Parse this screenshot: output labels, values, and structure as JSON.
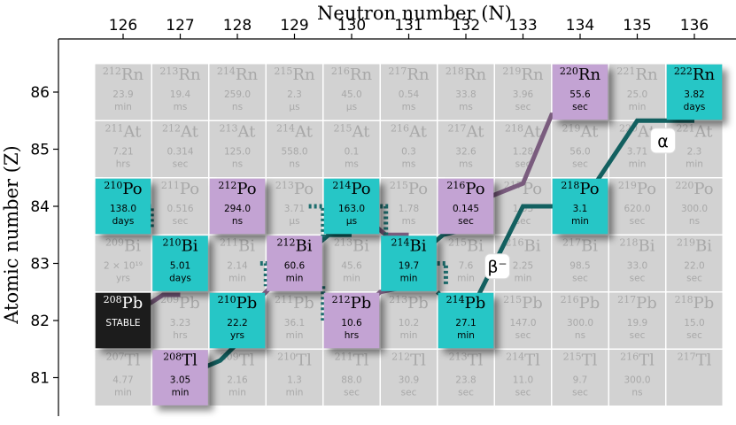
{
  "chart_data": {
    "type": "table",
    "xlabel": "Neutron number (N)",
    "ylabel": "Atomic number (Z)",
    "x_ticks": [
      "126",
      "127",
      "128",
      "129",
      "130",
      "131",
      "132",
      "133",
      "134",
      "135",
      "136"
    ],
    "y_ticks": [
      "86",
      "85",
      "84",
      "83",
      "82",
      "81"
    ],
    "colors": {
      "grid": "#d2d2d2",
      "alpha": "#26c6c6",
      "beta": "#c3a3d3",
      "stable": "#1a1a1a",
      "alpha_path": "#136060",
      "beta_path": "#7a5c7e",
      "grey_text": "#a8a8a8"
    },
    "nuclides": [
      {
        "A": "212",
        "el": "Rn",
        "N": 126,
        "Z": 86,
        "hl": "23.9",
        "unit": "min",
        "role": "grey"
      },
      {
        "A": "213",
        "el": "Rn",
        "N": 127,
        "Z": 86,
        "hl": "19.4",
        "unit": "ms",
        "role": "grey"
      },
      {
        "A": "214",
        "el": "Rn",
        "N": 128,
        "Z": 86,
        "hl": "259.0",
        "unit": "ns",
        "role": "grey"
      },
      {
        "A": "215",
        "el": "Rn",
        "N": 129,
        "Z": 86,
        "hl": "2.3",
        "unit": "µs",
        "role": "grey"
      },
      {
        "A": "216",
        "el": "Rn",
        "N": 130,
        "Z": 86,
        "hl": "45.0",
        "unit": "µs",
        "role": "grey"
      },
      {
        "A": "217",
        "el": "Rn",
        "N": 131,
        "Z": 86,
        "hl": "0.54",
        "unit": "ms",
        "role": "grey"
      },
      {
        "A": "218",
        "el": "Rn",
        "N": 132,
        "Z": 86,
        "hl": "33.8",
        "unit": "ms",
        "role": "grey"
      },
      {
        "A": "219",
        "el": "Rn",
        "N": 133,
        "Z": 86,
        "hl": "3.96",
        "unit": "sec",
        "role": "grey"
      },
      {
        "A": "220",
        "el": "Rn",
        "N": 134,
        "Z": 86,
        "hl": "55.6",
        "unit": "sec",
        "role": "beta"
      },
      {
        "A": "221",
        "el": "Rn",
        "N": 135,
        "Z": 86,
        "hl": "25.0",
        "unit": "min",
        "role": "grey"
      },
      {
        "A": "222",
        "el": "Rn",
        "N": 136,
        "Z": 86,
        "hl": "3.82",
        "unit": "days",
        "role": "alpha"
      },
      {
        "A": "211",
        "el": "At",
        "N": 126,
        "Z": 85,
        "hl": "7.21",
        "unit": "hrs",
        "role": "grey"
      },
      {
        "A": "212",
        "el": "At",
        "N": 127,
        "Z": 85,
        "hl": "0.314",
        "unit": "sec",
        "role": "grey"
      },
      {
        "A": "213",
        "el": "At",
        "N": 128,
        "Z": 85,
        "hl": "125.0",
        "unit": "ns",
        "role": "grey"
      },
      {
        "A": "214",
        "el": "At",
        "N": 129,
        "Z": 85,
        "hl": "558.0",
        "unit": "ns",
        "role": "grey"
      },
      {
        "A": "215",
        "el": "At",
        "N": 130,
        "Z": 85,
        "hl": "0.1",
        "unit": "ms",
        "role": "grey"
      },
      {
        "A": "216",
        "el": "At",
        "N": 131,
        "Z": 85,
        "hl": "0.3",
        "unit": "ms",
        "role": "grey"
      },
      {
        "A": "217",
        "el": "At",
        "N": 132,
        "Z": 85,
        "hl": "32.6",
        "unit": "ms",
        "role": "grey"
      },
      {
        "A": "218",
        "el": "At",
        "N": 133,
        "Z": 85,
        "hl": "1.28",
        "unit": "sec",
        "role": "grey"
      },
      {
        "A": "219",
        "el": "At",
        "N": 134,
        "Z": 85,
        "hl": "56.0",
        "unit": "sec",
        "role": "grey"
      },
      {
        "A": "220",
        "el": "At",
        "N": 135,
        "Z": 85,
        "hl": "3.71",
        "unit": "min",
        "role": "grey"
      },
      {
        "A": "221",
        "el": "At",
        "N": 136,
        "Z": 85,
        "hl": "2.3",
        "unit": "min",
        "role": "grey"
      },
      {
        "A": "210",
        "el": "Po",
        "N": 126,
        "Z": 84,
        "hl": "138.0",
        "unit": "days",
        "role": "alpha"
      },
      {
        "A": "211",
        "el": "Po",
        "N": 127,
        "Z": 84,
        "hl": "0.516",
        "unit": "sec",
        "role": "grey"
      },
      {
        "A": "212",
        "el": "Po",
        "N": 128,
        "Z": 84,
        "hl": "294.0",
        "unit": "ns",
        "role": "beta"
      },
      {
        "A": "213",
        "el": "Po",
        "N": 129,
        "Z": 84,
        "hl": "3.71",
        "unit": "µs",
        "role": "grey"
      },
      {
        "A": "214",
        "el": "Po",
        "N": 130,
        "Z": 84,
        "hl": "163.0",
        "unit": "µs",
        "role": "alpha"
      },
      {
        "A": "215",
        "el": "Po",
        "N": 131,
        "Z": 84,
        "hl": "1.78",
        "unit": "ms",
        "role": "grey"
      },
      {
        "A": "216",
        "el": "Po",
        "N": 132,
        "Z": 84,
        "hl": "0.145",
        "unit": "sec",
        "role": "beta"
      },
      {
        "A": "217",
        "el": "Po",
        "N": 133,
        "Z": 84,
        "hl": "1.53",
        "unit": "sec",
        "role": "grey"
      },
      {
        "A": "218",
        "el": "Po",
        "N": 134,
        "Z": 84,
        "hl": "3.1",
        "unit": "min",
        "role": "alpha"
      },
      {
        "A": "219",
        "el": "Po",
        "N": 135,
        "Z": 84,
        "hl": "620.0",
        "unit": "sec",
        "role": "grey"
      },
      {
        "A": "220",
        "el": "Po",
        "N": 136,
        "Z": 84,
        "hl": "300.0",
        "unit": "ns",
        "role": "grey"
      },
      {
        "A": "209",
        "el": "Bi",
        "N": 126,
        "Z": 83,
        "hl": "2 × 10¹⁹",
        "unit": "yrs",
        "role": "grey"
      },
      {
        "A": "210",
        "el": "Bi",
        "N": 127,
        "Z": 83,
        "hl": "5.01",
        "unit": "days",
        "role": "alpha"
      },
      {
        "A": "211",
        "el": "Bi",
        "N": 128,
        "Z": 83,
        "hl": "2.14",
        "unit": "min",
        "role": "grey"
      },
      {
        "A": "212",
        "el": "Bi",
        "N": 129,
        "Z": 83,
        "hl": "60.6",
        "unit": "min",
        "role": "beta"
      },
      {
        "A": "213",
        "el": "Bi",
        "N": 130,
        "Z": 83,
        "hl": "45.6",
        "unit": "min",
        "role": "grey"
      },
      {
        "A": "214",
        "el": "Bi",
        "N": 131,
        "Z": 83,
        "hl": "19.7",
        "unit": "min",
        "role": "alpha"
      },
      {
        "A": "215",
        "el": "Bi",
        "N": 132,
        "Z": 83,
        "hl": "7.6",
        "unit": "min",
        "role": "grey"
      },
      {
        "A": "216",
        "el": "Bi",
        "N": 133,
        "Z": 83,
        "hl": "2.25",
        "unit": "min",
        "role": "grey"
      },
      {
        "A": "217",
        "el": "Bi",
        "N": 134,
        "Z": 83,
        "hl": "98.5",
        "unit": "sec",
        "role": "grey"
      },
      {
        "A": "218",
        "el": "Bi",
        "N": 135,
        "Z": 83,
        "hl": "33.0",
        "unit": "sec",
        "role": "grey"
      },
      {
        "A": "219",
        "el": "Bi",
        "N": 136,
        "Z": 83,
        "hl": "22.0",
        "unit": "sec",
        "role": "grey"
      },
      {
        "A": "208",
        "el": "Pb",
        "N": 126,
        "Z": 82,
        "hl": "STABLE",
        "unit": "",
        "role": "stable"
      },
      {
        "A": "209",
        "el": "Pb",
        "N": 127,
        "Z": 82,
        "hl": "3.23",
        "unit": "hrs",
        "role": "grey"
      },
      {
        "A": "210",
        "el": "Pb",
        "N": 128,
        "Z": 82,
        "hl": "22.2",
        "unit": "yrs",
        "role": "alpha"
      },
      {
        "A": "211",
        "el": "Pb",
        "N": 129,
        "Z": 82,
        "hl": "36.1",
        "unit": "min",
        "role": "grey"
      },
      {
        "A": "212",
        "el": "Pb",
        "N": 130,
        "Z": 82,
        "hl": "10.6",
        "unit": "hrs",
        "role": "beta"
      },
      {
        "A": "213",
        "el": "Pb",
        "N": 131,
        "Z": 82,
        "hl": "10.2",
        "unit": "min",
        "role": "grey"
      },
      {
        "A": "214",
        "el": "Pb",
        "N": 132,
        "Z": 82,
        "hl": "27.1",
        "unit": "min",
        "role": "alpha"
      },
      {
        "A": "215",
        "el": "Pb",
        "N": 133,
        "Z": 82,
        "hl": "147.0",
        "unit": "sec",
        "role": "grey"
      },
      {
        "A": "216",
        "el": "Pb",
        "N": 134,
        "Z": 82,
        "hl": "300.0",
        "unit": "ns",
        "role": "grey"
      },
      {
        "A": "217",
        "el": "Pb",
        "N": 135,
        "Z": 82,
        "hl": "19.9",
        "unit": "sec",
        "role": "grey"
      },
      {
        "A": "218",
        "el": "Pb",
        "N": 136,
        "Z": 82,
        "hl": "15.0",
        "unit": "sec",
        "role": "grey"
      },
      {
        "A": "207",
        "el": "Tl",
        "N": 126,
        "Z": 81,
        "hl": "4.77",
        "unit": "min",
        "role": "grey"
      },
      {
        "A": "208",
        "el": "Tl",
        "N": 127,
        "Z": 81,
        "hl": "3.05",
        "unit": "min",
        "role": "beta"
      },
      {
        "A": "209",
        "el": "Tl",
        "N": 128,
        "Z": 81,
        "hl": "2.16",
        "unit": "min",
        "role": "grey"
      },
      {
        "A": "210",
        "el": "Tl",
        "N": 129,
        "Z": 81,
        "hl": "1.3",
        "unit": "min",
        "role": "grey"
      },
      {
        "A": "211",
        "el": "Tl",
        "N": 130,
        "Z": 81,
        "hl": "88.0",
        "unit": "sec",
        "role": "grey"
      },
      {
        "A": "212",
        "el": "Tl",
        "N": 131,
        "Z": 81,
        "hl": "30.9",
        "unit": "sec",
        "role": "grey"
      },
      {
        "A": "213",
        "el": "Tl",
        "N": 132,
        "Z": 81,
        "hl": "23.8",
        "unit": "sec",
        "role": "grey"
      },
      {
        "A": "214",
        "el": "Tl",
        "N": 133,
        "Z": 81,
        "hl": "11.0",
        "unit": "sec",
        "role": "grey"
      },
      {
        "A": "215",
        "el": "Tl",
        "N": 134,
        "Z": 81,
        "hl": "9.7",
        "unit": "sec",
        "role": "grey"
      },
      {
        "A": "216",
        "el": "Tl",
        "N": 135,
        "Z": 81,
        "hl": "300.0",
        "unit": "ns",
        "role": "grey"
      },
      {
        "A": "217",
        "el": "Tl",
        "N": 136,
        "Z": 81,
        "hl": "",
        "unit": "",
        "role": "grey"
      }
    ],
    "alpha_path": [
      [
        136,
        86
      ],
      [
        134,
        84
      ],
      [
        132,
        82
      ]
    ],
    "beta_path": [
      [
        134,
        86
      ],
      [
        132,
        84
      ],
      [
        130,
        82
      ]
    ],
    "beta_steps": [
      [
        126,
        84,
        127,
        83
      ],
      [
        127,
        83,
        128,
        82
      ],
      [
        129,
        83,
        130,
        84
      ],
      [
        131,
        83,
        132,
        84
      ]
    ],
    "alpha_steps": [
      [
        128,
        84,
        129,
        83
      ],
      [
        130,
        83,
        131,
        83
      ]
    ],
    "steps_solid_beta": [
      [
        126,
        82,
        127,
        83
      ],
      [
        127,
        81,
        128,
        82
      ],
      [
        128,
        82,
        129,
        83
      ],
      [
        129,
        83,
        130,
        84
      ],
      [
        130,
        84,
        131,
        83
      ],
      [
        131,
        83,
        132,
        84
      ]
    ],
    "annotations": [
      {
        "text": "α",
        "N": 135.45,
        "Z": 85.15
      },
      {
        "text": "β⁻",
        "N": 132.55,
        "Z": 82.95
      }
    ]
  }
}
